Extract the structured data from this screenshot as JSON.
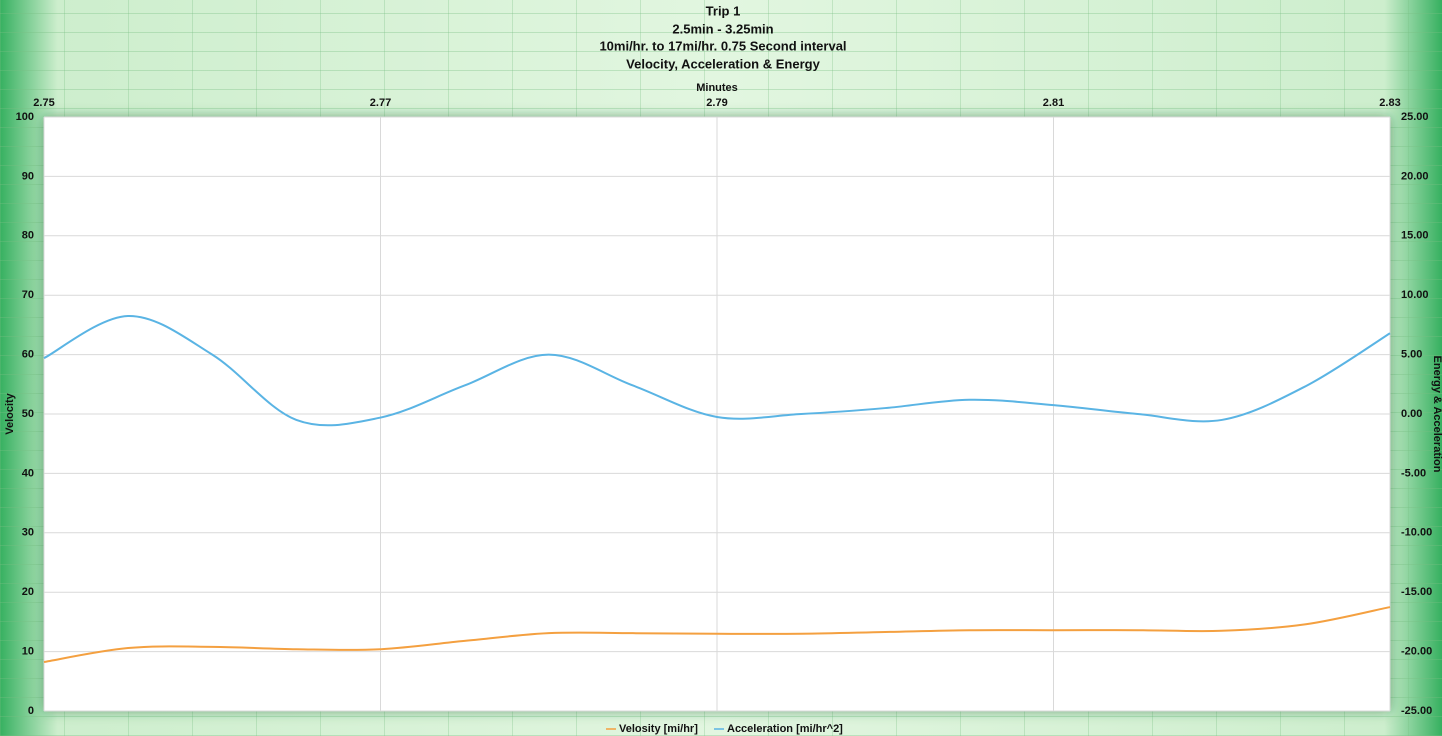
{
  "chart_data": {
    "type": "line",
    "title": "Trip 1",
    "subtitles": [
      "2.5min - 3.25min",
      "10mi/hr. to 17mi/hr. 0.75 Second interval",
      "Velocity, Acceleration & Energy"
    ],
    "x_label": "Minutes",
    "y_label": "Velocity",
    "y2_label": "Energy & Acceleration",
    "x": [
      2.75,
      2.755,
      2.76,
      2.765,
      2.77,
      2.775,
      2.78,
      2.785,
      2.79,
      2.795,
      2.8,
      2.805,
      2.81,
      2.815,
      2.82,
      2.825,
      2.83
    ],
    "series": [
      {
        "name": "Velosity [mi/hr]",
        "color": "#f4a040",
        "axis": "y",
        "values": [
          8.25,
          10.6,
          10.8,
          10.4,
          10.4,
          11.8,
          13.1,
          13.1,
          13.0,
          13.0,
          13.3,
          13.6,
          13.6,
          13.6,
          13.5,
          14.6,
          17.5
        ]
      },
      {
        "name": "Acceleration [mi/hr^2]",
        "color": "#5ab4e4",
        "axis": "y2",
        "values": [
          4.7,
          8.25,
          5.0,
          -0.5,
          -0.3,
          2.4,
          5.0,
          2.4,
          -0.25,
          0.0,
          0.5,
          1.2,
          0.75,
          0.0,
          -0.5,
          2.35,
          6.8
        ]
      }
    ],
    "xlim": [
      2.75,
      2.83
    ],
    "xticks": [
      2.75,
      2.77,
      2.79,
      2.81,
      2.83
    ],
    "ylim": [
      0,
      100
    ],
    "yticks": [
      0,
      10,
      20,
      30,
      40,
      50,
      60,
      70,
      80,
      90,
      100
    ],
    "y2lim": [
      -25,
      25
    ],
    "y2ticks": [
      {
        "value": -25,
        "label": "-25.00"
      },
      {
        "value": -20,
        "label": "-20.00"
      },
      {
        "value": -15,
        "label": "-15.00"
      },
      {
        "value": -10,
        "label": "-10.00"
      },
      {
        "value": -5,
        "label": "-5.00"
      },
      {
        "value": 0,
        "label": "0.00"
      },
      {
        "value": 5,
        "label": "5.00"
      },
      {
        "value": 10,
        "label": "10.00"
      },
      {
        "value": 15,
        "label": "15.00"
      },
      {
        "value": 20,
        "label": "20.00"
      },
      {
        "value": 25,
        "label": "25.00"
      }
    ],
    "grid": true,
    "smooth": true,
    "legend": "bottom"
  }
}
